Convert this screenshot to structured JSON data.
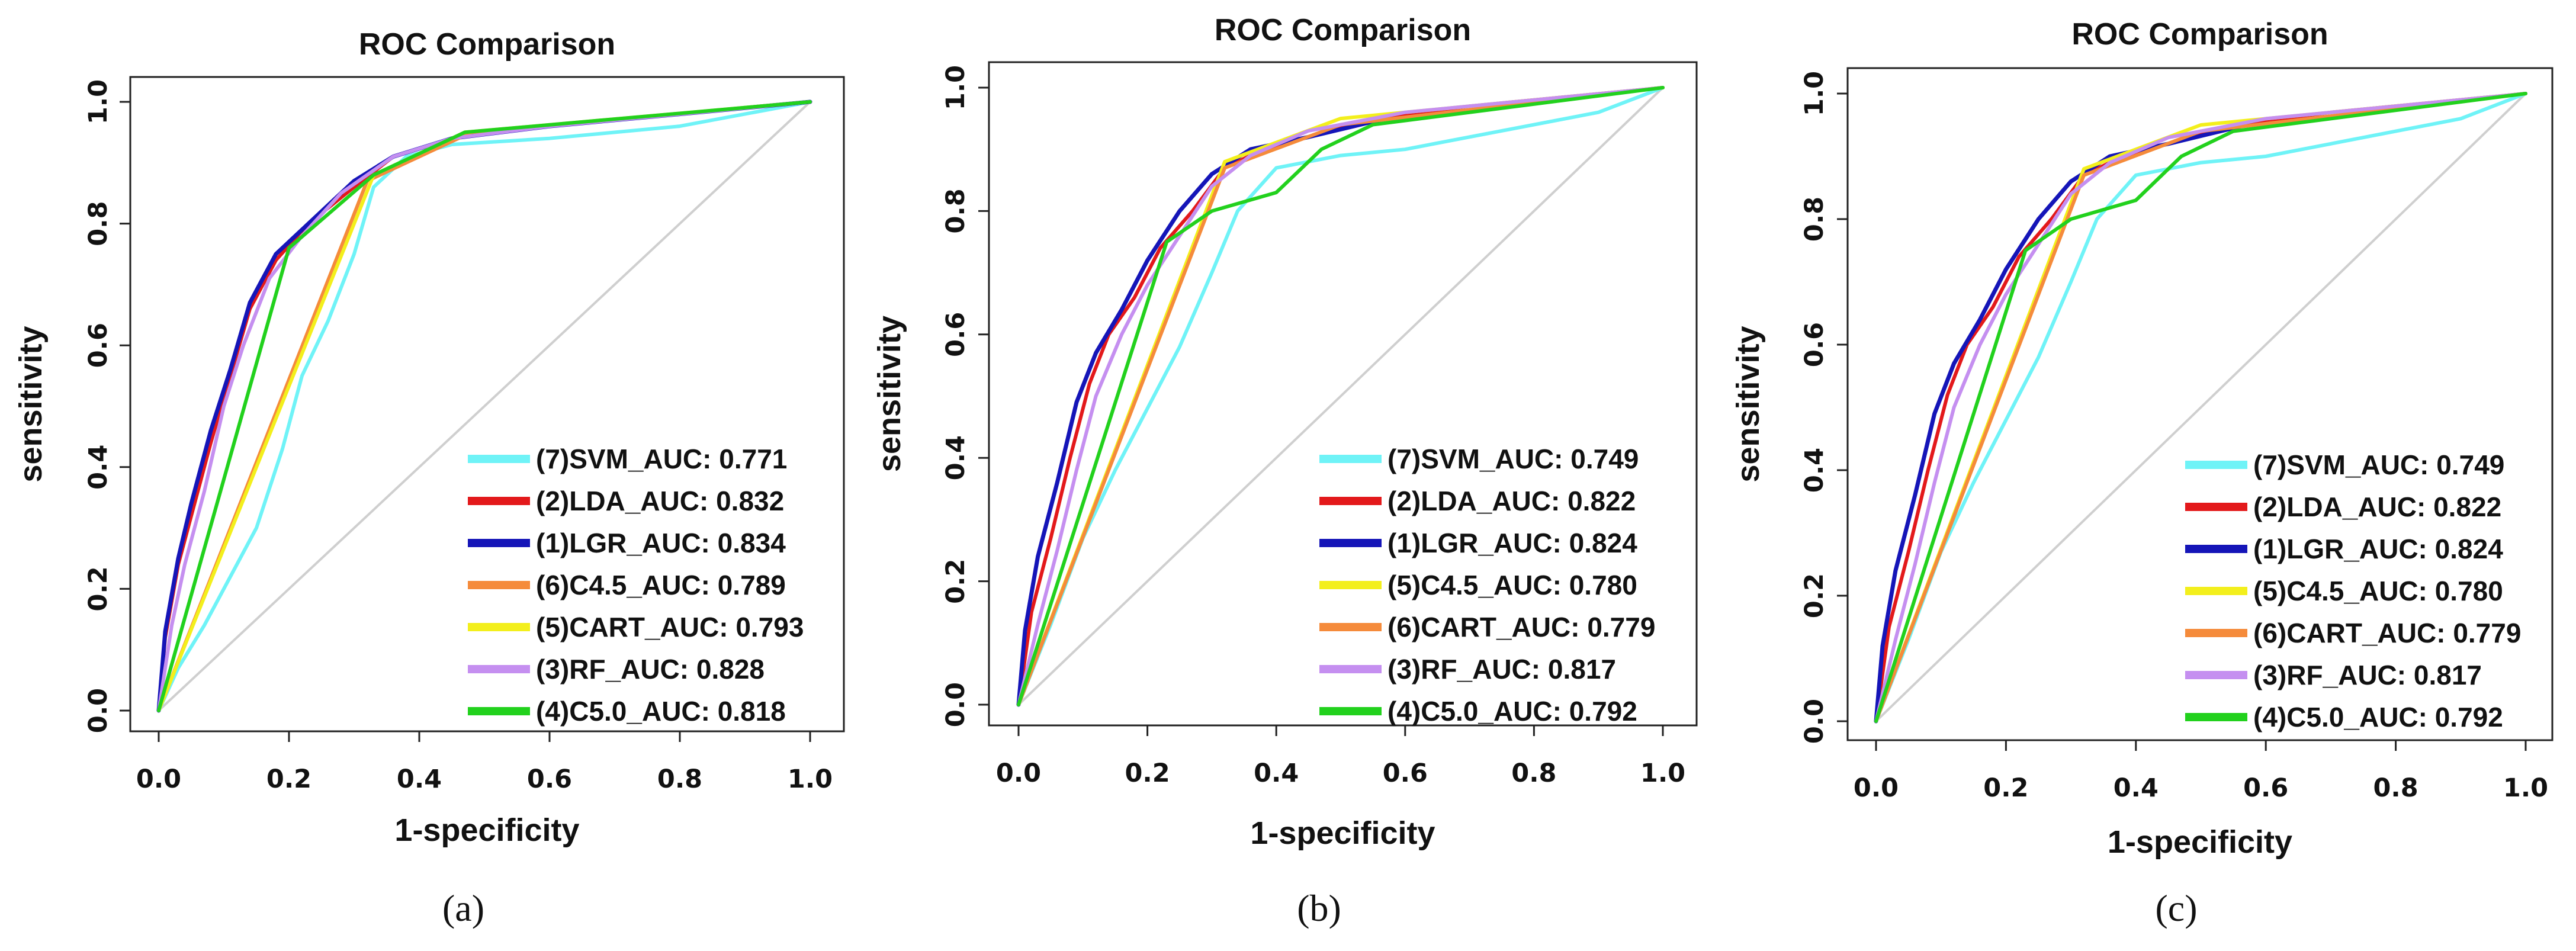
{
  "figure": {
    "x_label": "1-specificity",
    "y_label": "sensitivity",
    "x_ticks": [
      "0.0",
      "0.2",
      "0.4",
      "0.6",
      "0.8",
      "1.0"
    ],
    "y_ticks": [
      "0.0",
      "0.2",
      "0.4",
      "0.6",
      "0.8",
      "1.0"
    ]
  },
  "chart_data": [
    {
      "type": "line",
      "panel": "(a)",
      "title": "ROC Comparison",
      "xlabel": "1-specificity",
      "ylabel": "sensitivity",
      "xlim": [
        0,
        1
      ],
      "ylim": [
        0,
        1
      ],
      "legend_position": "bottom-right",
      "reference_line": [
        [
          0,
          0
        ],
        [
          1,
          1
        ]
      ],
      "series": [
        {
          "name": "(7)SVM_AUC: 0.771",
          "color": "#6ff3f7",
          "points": [
            [
              0,
              0
            ],
            [
              0.03,
              0.07
            ],
            [
              0.07,
              0.14
            ],
            [
              0.11,
              0.22
            ],
            [
              0.15,
              0.3
            ],
            [
              0.19,
              0.43
            ],
            [
              0.22,
              0.55
            ],
            [
              0.26,
              0.64
            ],
            [
              0.3,
              0.75
            ],
            [
              0.33,
              0.86
            ],
            [
              0.38,
              0.91
            ],
            [
              0.45,
              0.93
            ],
            [
              0.6,
              0.94
            ],
            [
              0.8,
              0.96
            ],
            [
              1,
              1
            ]
          ]
        },
        {
          "name": "(2)LDA_AUC: 0.832",
          "color": "#e3191b",
          "points": [
            [
              0,
              0
            ],
            [
              0.01,
              0.12
            ],
            [
              0.03,
              0.24
            ],
            [
              0.05,
              0.32
            ],
            [
              0.08,
              0.44
            ],
            [
              0.11,
              0.55
            ],
            [
              0.14,
              0.66
            ],
            [
              0.18,
              0.74
            ],
            [
              0.23,
              0.8
            ],
            [
              0.3,
              0.86
            ],
            [
              0.36,
              0.91
            ],
            [
              0.45,
              0.94
            ],
            [
              0.6,
              0.96
            ],
            [
              0.8,
              0.98
            ],
            [
              1,
              1
            ]
          ]
        },
        {
          "name": "(1)LGR_AUC: 0.834",
          "color": "#1515b8",
          "points": [
            [
              0,
              0
            ],
            [
              0.01,
              0.13
            ],
            [
              0.03,
              0.25
            ],
            [
              0.05,
              0.34
            ],
            [
              0.08,
              0.46
            ],
            [
              0.11,
              0.56
            ],
            [
              0.14,
              0.67
            ],
            [
              0.18,
              0.75
            ],
            [
              0.23,
              0.8
            ],
            [
              0.3,
              0.87
            ],
            [
              0.36,
              0.91
            ],
            [
              0.45,
              0.94
            ],
            [
              0.6,
              0.96
            ],
            [
              0.8,
              0.98
            ],
            [
              1,
              1
            ]
          ]
        },
        {
          "name": "(6)C4.5_AUC: 0.789",
          "color": "#f58b3b",
          "points": [
            [
              0,
              0
            ],
            [
              0.32,
              0.87
            ],
            [
              0.48,
              0.95
            ],
            [
              1,
              1
            ]
          ]
        },
        {
          "name": "(5)CART_AUC: 0.793",
          "color": "#f3ef1c",
          "points": [
            [
              0,
              0
            ],
            [
              0.33,
              0.88
            ],
            [
              0.47,
              0.95
            ],
            [
              1,
              1
            ]
          ]
        },
        {
          "name": "(3)RF_AUC: 0.828",
          "color": "#c58ff0",
          "points": [
            [
              0,
              0
            ],
            [
              0.02,
              0.14
            ],
            [
              0.04,
              0.24
            ],
            [
              0.07,
              0.36
            ],
            [
              0.1,
              0.5
            ],
            [
              0.13,
              0.6
            ],
            [
              0.17,
              0.71
            ],
            [
              0.22,
              0.78
            ],
            [
              0.28,
              0.85
            ],
            [
              0.36,
              0.91
            ],
            [
              0.45,
              0.94
            ],
            [
              0.6,
              0.96
            ],
            [
              0.8,
              0.98
            ],
            [
              1,
              1
            ]
          ]
        },
        {
          "name": "(4)C5.0_AUC: 0.818",
          "color": "#22d11d",
          "points": [
            [
              0,
              0
            ],
            [
              0.2,
              0.76
            ],
            [
              0.33,
              0.88
            ],
            [
              0.47,
              0.95
            ],
            [
              1,
              1
            ]
          ]
        }
      ]
    },
    {
      "type": "line",
      "panel": "(b)",
      "title": "ROC Comparison",
      "xlabel": "1-specificity",
      "ylabel": "sensitivity",
      "xlim": [
        0,
        1
      ],
      "ylim": [
        0,
        1
      ],
      "legend_position": "bottom-right",
      "reference_line": [
        [
          0,
          0
        ],
        [
          1,
          1
        ]
      ],
      "series": [
        {
          "name": "(7)SVM_AUC: 0.749",
          "color": "#6ff3f7",
          "points": [
            [
              0,
              0
            ],
            [
              0.05,
              0.13
            ],
            [
              0.1,
              0.27
            ],
            [
              0.15,
              0.38
            ],
            [
              0.2,
              0.48
            ],
            [
              0.25,
              0.58
            ],
            [
              0.3,
              0.7
            ],
            [
              0.34,
              0.8
            ],
            [
              0.4,
              0.87
            ],
            [
              0.5,
              0.89
            ],
            [
              0.6,
              0.9
            ],
            [
              0.75,
              0.93
            ],
            [
              0.9,
              0.96
            ],
            [
              1,
              1
            ]
          ]
        },
        {
          "name": "(2)LDA_AUC: 0.822",
          "color": "#e3191b",
          "points": [
            [
              0,
              0
            ],
            [
              0.02,
              0.15
            ],
            [
              0.05,
              0.27
            ],
            [
              0.08,
              0.4
            ],
            [
              0.11,
              0.52
            ],
            [
              0.14,
              0.6
            ],
            [
              0.18,
              0.66
            ],
            [
              0.22,
              0.74
            ],
            [
              0.27,
              0.8
            ],
            [
              0.32,
              0.87
            ],
            [
              0.38,
              0.9
            ],
            [
              0.45,
              0.92
            ],
            [
              0.55,
              0.95
            ],
            [
              0.7,
              0.97
            ],
            [
              1,
              1
            ]
          ]
        },
        {
          "name": "(1)LGR_AUC: 0.824",
          "color": "#1515b8",
          "points": [
            [
              0,
              0
            ],
            [
              0.01,
              0.12
            ],
            [
              0.03,
              0.24
            ],
            [
              0.06,
              0.36
            ],
            [
              0.09,
              0.49
            ],
            [
              0.12,
              0.57
            ],
            [
              0.16,
              0.64
            ],
            [
              0.2,
              0.72
            ],
            [
              0.25,
              0.8
            ],
            [
              0.3,
              0.86
            ],
            [
              0.36,
              0.9
            ],
            [
              0.45,
              0.92
            ],
            [
              0.57,
              0.95
            ]
          ]
        },
        {
          "name": "(5)C4.5_AUC: 0.780",
          "color": "#f3ef1c",
          "points": [
            [
              0,
              0
            ],
            [
              0.32,
              0.88
            ],
            [
              0.5,
              0.95
            ],
            [
              1,
              1
            ]
          ]
        },
        {
          "name": "(6)CART_AUC: 0.779",
          "color": "#f58b3b",
          "points": [
            [
              0,
              0
            ],
            [
              0.32,
              0.87
            ],
            [
              0.5,
              0.94
            ],
            [
              1,
              1
            ]
          ]
        },
        {
          "name": "(3)RF_AUC: 0.817",
          "color": "#c58ff0",
          "points": [
            [
              0,
              0
            ],
            [
              0.03,
              0.13
            ],
            [
              0.06,
              0.25
            ],
            [
              0.09,
              0.38
            ],
            [
              0.12,
              0.5
            ],
            [
              0.16,
              0.6
            ],
            [
              0.2,
              0.68
            ],
            [
              0.25,
              0.76
            ],
            [
              0.3,
              0.84
            ],
            [
              0.36,
              0.89
            ],
            [
              0.45,
              0.93
            ],
            [
              0.6,
              0.96
            ],
            [
              0.8,
              0.98
            ],
            [
              1,
              1
            ]
          ]
        },
        {
          "name": "(4)C5.0_AUC: 0.792",
          "color": "#22d11d",
          "points": [
            [
              0,
              0
            ],
            [
              0.23,
              0.75
            ],
            [
              0.3,
              0.8
            ],
            [
              0.4,
              0.83
            ],
            [
              0.47,
              0.9
            ],
            [
              0.55,
              0.94
            ],
            [
              1,
              1
            ]
          ]
        }
      ]
    },
    {
      "type": "line",
      "panel": "(c)",
      "title": "ROC Comparison",
      "xlabel": "1-specificity",
      "ylabel": "sensitivity",
      "xlim": [
        0,
        1
      ],
      "ylim": [
        0,
        1
      ],
      "legend_position": "bottom-right",
      "reference_line": [
        [
          0,
          0
        ],
        [
          1,
          1
        ]
      ],
      "series": [
        {
          "name": "(7)SVM_AUC: 0.749",
          "color": "#6ff3f7",
          "points": [
            [
              0,
              0
            ],
            [
              0.05,
              0.13
            ],
            [
              0.1,
              0.27
            ],
            [
              0.15,
              0.38
            ],
            [
              0.2,
              0.48
            ],
            [
              0.25,
              0.58
            ],
            [
              0.3,
              0.7
            ],
            [
              0.34,
              0.8
            ],
            [
              0.4,
              0.87
            ],
            [
              0.5,
              0.89
            ],
            [
              0.6,
              0.9
            ],
            [
              0.75,
              0.93
            ],
            [
              0.9,
              0.96
            ],
            [
              1,
              1
            ]
          ]
        },
        {
          "name": "(2)LDA_AUC: 0.822",
          "color": "#e3191b",
          "points": [
            [
              0,
              0
            ],
            [
              0.02,
              0.15
            ],
            [
              0.05,
              0.27
            ],
            [
              0.08,
              0.4
            ],
            [
              0.11,
              0.52
            ],
            [
              0.14,
              0.6
            ],
            [
              0.18,
              0.66
            ],
            [
              0.22,
              0.74
            ],
            [
              0.27,
              0.8
            ],
            [
              0.32,
              0.87
            ],
            [
              0.38,
              0.9
            ],
            [
              0.45,
              0.92
            ],
            [
              0.55,
              0.95
            ],
            [
              0.7,
              0.97
            ],
            [
              1,
              1
            ]
          ]
        },
        {
          "name": "(1)LGR_AUC: 0.824",
          "color": "#1515b8",
          "points": [
            [
              0,
              0
            ],
            [
              0.01,
              0.12
            ],
            [
              0.03,
              0.24
            ],
            [
              0.06,
              0.36
            ],
            [
              0.09,
              0.49
            ],
            [
              0.12,
              0.57
            ],
            [
              0.16,
              0.64
            ],
            [
              0.2,
              0.72
            ],
            [
              0.25,
              0.8
            ],
            [
              0.3,
              0.86
            ],
            [
              0.36,
              0.9
            ],
            [
              0.45,
              0.92
            ],
            [
              0.57,
              0.95
            ]
          ]
        },
        {
          "name": "(5)C4.5_AUC: 0.780",
          "color": "#f3ef1c",
          "points": [
            [
              0,
              0
            ],
            [
              0.32,
              0.88
            ],
            [
              0.5,
              0.95
            ],
            [
              1,
              1
            ]
          ]
        },
        {
          "name": "(6)CART_AUC: 0.779",
          "color": "#f58b3b",
          "points": [
            [
              0,
              0
            ],
            [
              0.32,
              0.87
            ],
            [
              0.5,
              0.94
            ],
            [
              1,
              1
            ]
          ]
        },
        {
          "name": "(3)RF_AUC: 0.817",
          "color": "#c58ff0",
          "points": [
            [
              0,
              0
            ],
            [
              0.03,
              0.13
            ],
            [
              0.06,
              0.25
            ],
            [
              0.09,
              0.38
            ],
            [
              0.12,
              0.5
            ],
            [
              0.16,
              0.6
            ],
            [
              0.2,
              0.68
            ],
            [
              0.25,
              0.76
            ],
            [
              0.3,
              0.84
            ],
            [
              0.36,
              0.89
            ],
            [
              0.45,
              0.93
            ],
            [
              0.6,
              0.96
            ],
            [
              0.8,
              0.98
            ],
            [
              1,
              1
            ]
          ]
        },
        {
          "name": "(4)C5.0_AUC: 0.792",
          "color": "#22d11d",
          "points": [
            [
              0,
              0
            ],
            [
              0.23,
              0.75
            ],
            [
              0.3,
              0.8
            ],
            [
              0.4,
              0.83
            ],
            [
              0.47,
              0.9
            ],
            [
              0.55,
              0.94
            ],
            [
              1,
              1
            ]
          ]
        }
      ]
    }
  ]
}
